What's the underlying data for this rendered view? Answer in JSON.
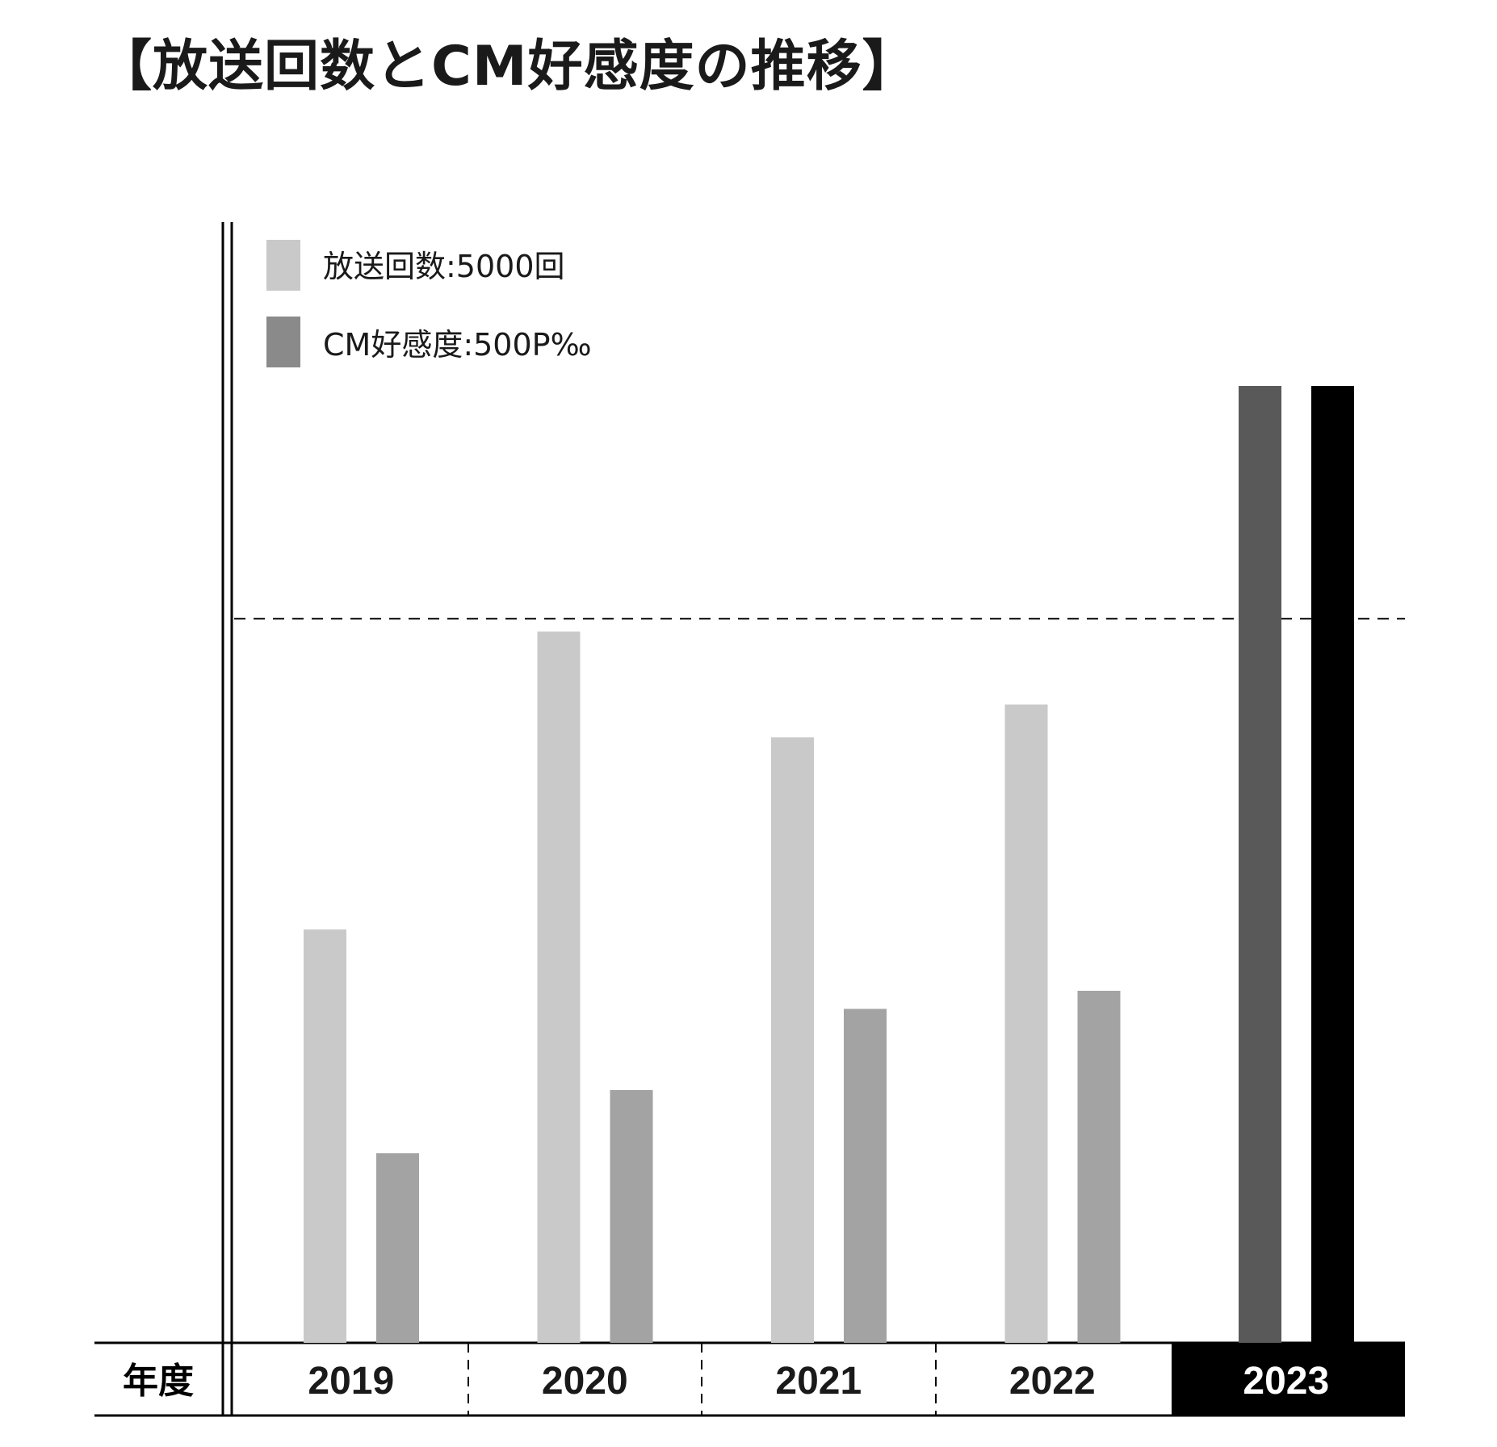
{
  "chart_data": {
    "type": "bar",
    "title": "【放送回数とCM好感度の推移】",
    "xlabel": "年度",
    "categories": [
      "2019",
      "2020",
      "2021",
      "2022",
      "2023"
    ],
    "highlight_category": "2023",
    "series": [
      {
        "name": "放送回数:5000回",
        "values": [
          3400,
          5850,
          4980,
          5250,
          7870
        ],
        "color": "#c9c9c9",
        "highlight_color": "#595959"
      },
      {
        "name": "CM好感度:500P‰",
        "values": [
          210,
          280,
          370,
          390,
          1060
        ],
        "color": "#a2a3a2",
        "highlight_color": "#000000"
      }
    ],
    "reference_line": {
      "style": "dashed",
      "value": 5850,
      "series": "放送回数:5000回"
    },
    "grid": false,
    "legend_position": "top-left"
  }
}
